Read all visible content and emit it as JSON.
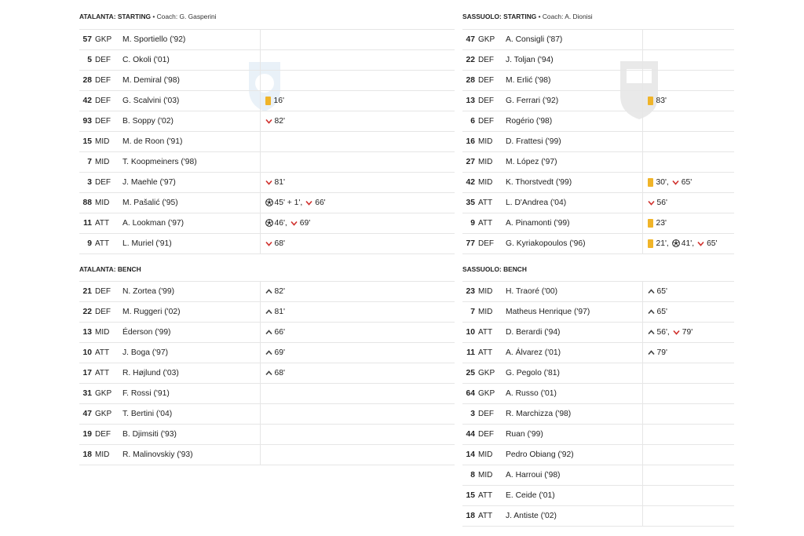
{
  "atalanta": {
    "starting_header": {
      "team": "ATALANTA: STARTING",
      "coach": " • Coach: G. Gasperini"
    },
    "bench_header": {
      "team": "ATALANTA: BENCH"
    },
    "starting": [
      {
        "num": "57",
        "pos": "GKP",
        "name": "M. Sportiello ('92)",
        "events": []
      },
      {
        "num": "5",
        "pos": "DEF",
        "name": "C. Okoli ('01)",
        "events": []
      },
      {
        "num": "28",
        "pos": "DEF",
        "name": "M. Demiral ('98)",
        "events": []
      },
      {
        "num": "42",
        "pos": "DEF",
        "name": "G. Scalvini ('03)",
        "events": [
          {
            "icon": "yellow-card",
            "text": "16'"
          }
        ]
      },
      {
        "num": "93",
        "pos": "DEF",
        "name": "B. Soppy ('02)",
        "events": [
          {
            "icon": "sub-off",
            "text": "82'"
          }
        ]
      },
      {
        "num": "15",
        "pos": "MID",
        "name": "M. de Roon ('91)",
        "events": []
      },
      {
        "num": "7",
        "pos": "MID",
        "name": "T. Koopmeiners ('98)",
        "events": []
      },
      {
        "num": "3",
        "pos": "DEF",
        "name": "J. Maehle ('97)",
        "events": [
          {
            "icon": "sub-off",
            "text": "81'"
          }
        ]
      },
      {
        "num": "88",
        "pos": "MID",
        "name": "M. Pašalić ('95)",
        "events": [
          {
            "icon": "goal",
            "text": "45' + 1',"
          },
          {
            "icon": "sub-off",
            "text": "66'"
          }
        ]
      },
      {
        "num": "11",
        "pos": "ATT",
        "name": "A. Lookman ('97)",
        "events": [
          {
            "icon": "goal",
            "text": "46',"
          },
          {
            "icon": "sub-off",
            "text": "69'"
          }
        ]
      },
      {
        "num": "9",
        "pos": "ATT",
        "name": "L. Muriel ('91)",
        "events": [
          {
            "icon": "sub-off",
            "text": "68'"
          }
        ]
      }
    ],
    "bench": [
      {
        "num": "21",
        "pos": "DEF",
        "name": "N. Zortea ('99)",
        "events": [
          {
            "icon": "sub-on",
            "text": "82'"
          }
        ]
      },
      {
        "num": "22",
        "pos": "DEF",
        "name": "M. Ruggeri ('02)",
        "events": [
          {
            "icon": "sub-on",
            "text": "81'"
          }
        ]
      },
      {
        "num": "13",
        "pos": "MID",
        "name": "Éderson ('99)",
        "events": [
          {
            "icon": "sub-on",
            "text": "66'"
          }
        ]
      },
      {
        "num": "10",
        "pos": "ATT",
        "name": "J. Boga ('97)",
        "events": [
          {
            "icon": "sub-on",
            "text": "69'"
          }
        ]
      },
      {
        "num": "17",
        "pos": "ATT",
        "name": "R. Højlund ('03)",
        "events": [
          {
            "icon": "sub-on",
            "text": "68'"
          }
        ]
      },
      {
        "num": "31",
        "pos": "GKP",
        "name": "F. Rossi ('91)",
        "events": []
      },
      {
        "num": "47",
        "pos": "GKP",
        "name": "T. Bertini ('04)",
        "events": []
      },
      {
        "num": "19",
        "pos": "DEF",
        "name": "B. Djimsiti ('93)",
        "events": []
      },
      {
        "num": "18",
        "pos": "MID",
        "name": "R. Malinovskiy ('93)",
        "events": []
      }
    ]
  },
  "sassuolo": {
    "starting_header": {
      "team": "SASSUOLO: STARTING",
      "coach": " • Coach: A. Dionisi"
    },
    "bench_header": {
      "team": "SASSUOLO: BENCH"
    },
    "starting": [
      {
        "num": "47",
        "pos": "GKP",
        "name": "A. Consigli ('87)",
        "events": []
      },
      {
        "num": "22",
        "pos": "DEF",
        "name": "J. Toljan ('94)",
        "events": []
      },
      {
        "num": "28",
        "pos": "DEF",
        "name": "M. Erlić ('98)",
        "events": []
      },
      {
        "num": "13",
        "pos": "DEF",
        "name": "G. Ferrari ('92)",
        "events": [
          {
            "icon": "yellow-card",
            "text": "83'"
          }
        ]
      },
      {
        "num": "6",
        "pos": "DEF",
        "name": "Rogério ('98)",
        "events": []
      },
      {
        "num": "16",
        "pos": "MID",
        "name": "D. Frattesi ('99)",
        "events": []
      },
      {
        "num": "27",
        "pos": "MID",
        "name": "M. López ('97)",
        "events": []
      },
      {
        "num": "42",
        "pos": "MID",
        "name": "K. Thorstvedt ('99)",
        "events": [
          {
            "icon": "yellow-card",
            "text": "30',"
          },
          {
            "icon": "sub-off",
            "text": "65'"
          }
        ]
      },
      {
        "num": "35",
        "pos": "ATT",
        "name": "L. D'Andrea ('04)",
        "events": [
          {
            "icon": "sub-off",
            "text": "56'"
          }
        ]
      },
      {
        "num": "9",
        "pos": "ATT",
        "name": "A. Pinamonti ('99)",
        "events": [
          {
            "icon": "yellow-card",
            "text": "23'"
          }
        ]
      },
      {
        "num": "77",
        "pos": "DEF",
        "name": "G. Kyriakopoulos ('96)",
        "events": [
          {
            "icon": "yellow-card",
            "text": "21',"
          },
          {
            "icon": "goal",
            "text": "41',"
          },
          {
            "icon": "sub-off",
            "text": "65'"
          }
        ]
      }
    ],
    "bench": [
      {
        "num": "23",
        "pos": "MID",
        "name": "H. Traoré ('00)",
        "events": [
          {
            "icon": "sub-on",
            "text": "65'"
          }
        ]
      },
      {
        "num": "7",
        "pos": "MID",
        "name": "Matheus Henrique ('97)",
        "events": [
          {
            "icon": "sub-on",
            "text": "65'"
          }
        ]
      },
      {
        "num": "10",
        "pos": "ATT",
        "name": "D. Berardi ('94)",
        "events": [
          {
            "icon": "sub-on",
            "text": "56',"
          },
          {
            "icon": "sub-off",
            "text": "79'"
          }
        ]
      },
      {
        "num": "11",
        "pos": "ATT",
        "name": "A. Álvarez ('01)",
        "events": [
          {
            "icon": "sub-on",
            "text": "79'"
          }
        ]
      },
      {
        "num": "25",
        "pos": "GKP",
        "name": "G. Pegolo ('81)",
        "events": []
      },
      {
        "num": "64",
        "pos": "GKP",
        "name": "A. Russo ('01)",
        "events": []
      },
      {
        "num": "3",
        "pos": "DEF",
        "name": "R. Marchizza ('98)",
        "events": []
      },
      {
        "num": "44",
        "pos": "DEF",
        "name": "Ruan ('99)",
        "events": []
      },
      {
        "num": "14",
        "pos": "MID",
        "name": "Pedro Obiang ('92)",
        "events": []
      },
      {
        "num": "8",
        "pos": "MID",
        "name": "A. Harroui ('98)",
        "events": []
      },
      {
        "num": "15",
        "pos": "ATT",
        "name": "E. Ceide ('01)",
        "events": []
      },
      {
        "num": "18",
        "pos": "ATT",
        "name": "J. Antiste ('02)",
        "events": []
      }
    ]
  },
  "colors": {
    "yellow_card": "#f0b429",
    "sub_off": "#d0312d",
    "sub_on": "#444444"
  }
}
